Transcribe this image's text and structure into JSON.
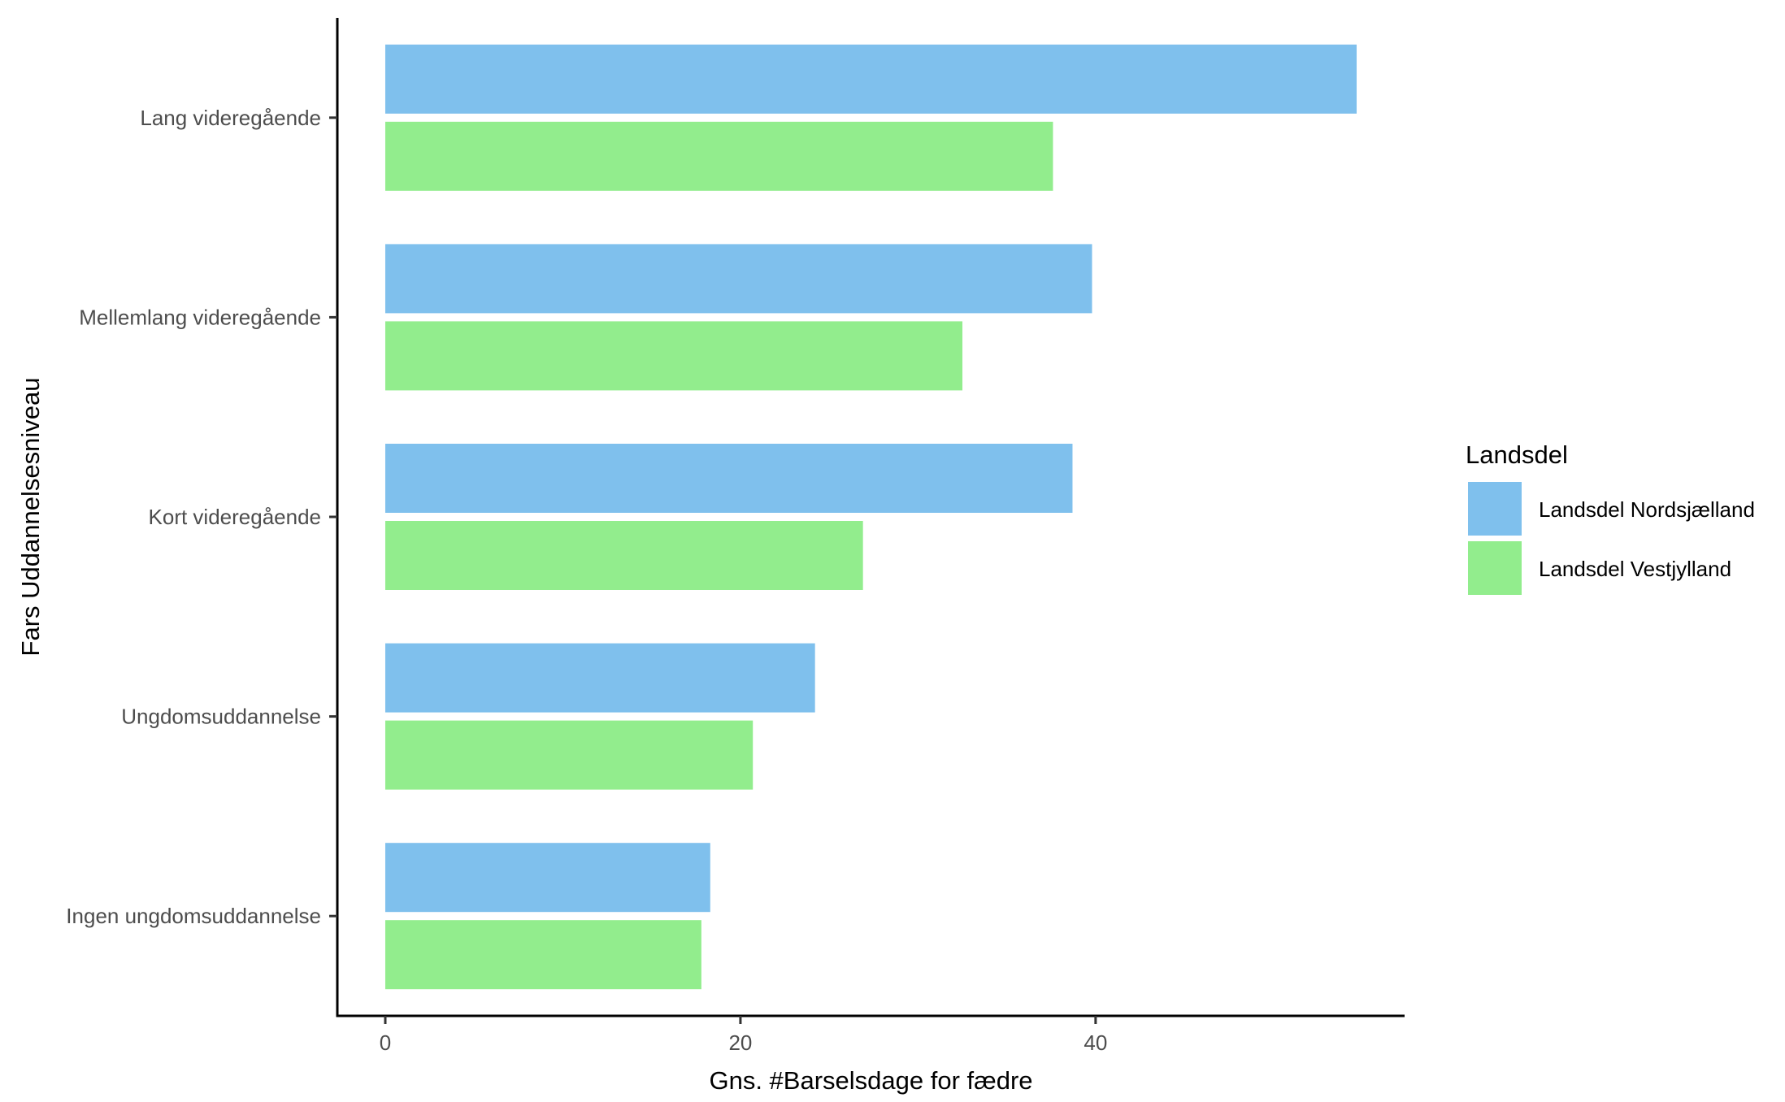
{
  "chart_data": {
    "type": "bar",
    "orientation": "horizontal",
    "categories": [
      "Lang videregående",
      "Mellemlang videregående",
      "Kort videregående",
      "Ungdomsuddannelse",
      "Ingen ungdomsuddannelse"
    ],
    "series": [
      {
        "name": "Landsdel Nordsjælland",
        "color": "#7fc0ed",
        "values": [
          54.7,
          39.8,
          38.7,
          24.2,
          18.3
        ]
      },
      {
        "name": "Landsdel Vestjylland",
        "color": "#92ed8d",
        "values": [
          37.6,
          32.5,
          26.9,
          20.7,
          17.8
        ]
      }
    ],
    "xlabel": "Gns. #Barselsdage for fædre",
    "ylabel": "Fars Uddannelsesniveau",
    "xlim": [
      -2.7,
      57.4
    ],
    "xticks": [
      0,
      20,
      40
    ],
    "legend": {
      "title": "Landsdel",
      "position": "right"
    },
    "grid": false
  }
}
